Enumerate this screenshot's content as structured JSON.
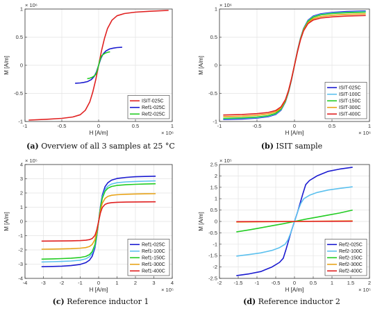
{
  "chart_data": [
    {
      "type": "line",
      "tag": "(a)",
      "caption": "Overview of all 3 samples at 25 °C",
      "xlabel": "H [A/m]",
      "ylabel": "M [A/m]",
      "x_exponent": "× 10⁶",
      "y_exponent": "× 10⁶",
      "xlim": [
        -1,
        1
      ],
      "ylim": [
        -1,
        1
      ],
      "xticks": [
        -1,
        -0.5,
        0,
        0.5,
        1
      ],
      "xtick_labels": [
        "-1",
        "-0.5",
        "0",
        "0.5",
        "1"
      ],
      "yticks": [
        -1,
        -0.5,
        0,
        0.5,
        1
      ],
      "ytick_labels": [
        "-1",
        "-0.5",
        "0",
        "0.5",
        "1"
      ],
      "grid": true,
      "legend": "bottom-right",
      "series": [
        {
          "name": "ISIT-025C",
          "color": "#e02020",
          "x": [
            -0.95,
            -0.7,
            -0.5,
            -0.35,
            -0.25,
            -0.18,
            -0.12,
            -0.08,
            -0.04,
            0,
            0.04,
            0.08,
            0.12,
            0.18,
            0.25,
            0.35,
            0.5,
            0.7,
            0.95
          ],
          "y": [
            -0.975,
            -0.96,
            -0.945,
            -0.92,
            -0.88,
            -0.8,
            -0.65,
            -0.48,
            -0.26,
            0,
            0.26,
            0.48,
            0.65,
            0.8,
            0.88,
            0.92,
            0.945,
            0.96,
            0.975
          ]
        },
        {
          "name": "Ref1-025C",
          "color": "#1a1ad0",
          "x": [
            -0.32,
            -0.25,
            -0.2,
            -0.15,
            -0.1,
            -0.06,
            -0.03,
            0,
            0.03,
            0.06,
            0.1,
            0.15,
            0.2,
            0.25,
            0.32
          ],
          "y": [
            -0.32,
            -0.315,
            -0.305,
            -0.29,
            -0.255,
            -0.2,
            -0.12,
            0,
            0.12,
            0.2,
            0.255,
            0.29,
            0.305,
            0.315,
            0.32
          ]
        },
        {
          "name": "Ref2-025C",
          "color": "#22cc22",
          "x": [
            -0.155,
            -0.12,
            -0.09,
            -0.06,
            -0.04,
            -0.02,
            0,
            0.02,
            0.04,
            0.06,
            0.09,
            0.12,
            0.155
          ],
          "y": [
            -0.24,
            -0.23,
            -0.215,
            -0.19,
            -0.165,
            -0.1,
            0,
            0.1,
            0.165,
            0.19,
            0.215,
            0.23,
            0.24
          ]
        }
      ]
    },
    {
      "type": "line",
      "tag": "(b)",
      "caption": "ISIT sample",
      "xlabel": "H [A/m]",
      "ylabel": "M [A/m]",
      "x_exponent": "× 10⁶",
      "y_exponent": "× 10⁶",
      "xlim": [
        -1,
        1
      ],
      "ylim": [
        -1,
        1
      ],
      "xticks": [
        -1,
        -0.5,
        0,
        0.5,
        1
      ],
      "xtick_labels": [
        "-1",
        "-0.5",
        "0",
        "0.5",
        "1"
      ],
      "yticks": [
        -1,
        -0.5,
        0,
        0.5,
        1
      ],
      "ytick_labels": [
        "-1",
        "-0.5",
        "0",
        "0.5",
        "1"
      ],
      "grid": true,
      "legend": "bottom-right",
      "series": [
        {
          "name": "ISIT-025C",
          "color": "#1a1ad0",
          "x": [
            -0.95,
            -0.7,
            -0.5,
            -0.35,
            -0.25,
            -0.18,
            -0.12,
            -0.08,
            -0.04,
            0,
            0.04,
            0.08,
            0.12,
            0.18,
            0.25,
            0.35,
            0.5,
            0.7,
            0.95
          ],
          "y": [
            -0.965,
            -0.955,
            -0.94,
            -0.915,
            -0.875,
            -0.8,
            -0.65,
            -0.48,
            -0.26,
            0,
            0.26,
            0.48,
            0.65,
            0.8,
            0.875,
            0.915,
            0.94,
            0.955,
            0.965
          ]
        },
        {
          "name": "ISIT-100C",
          "color": "#5bc0ee",
          "x": [
            -0.95,
            -0.7,
            -0.5,
            -0.35,
            -0.25,
            -0.18,
            -0.12,
            -0.08,
            -0.04,
            0,
            0.04,
            0.08,
            0.12,
            0.18,
            0.25,
            0.35,
            0.5,
            0.7,
            0.95
          ],
          "y": [
            -0.955,
            -0.945,
            -0.93,
            -0.905,
            -0.865,
            -0.79,
            -0.645,
            -0.475,
            -0.255,
            0,
            0.255,
            0.475,
            0.645,
            0.79,
            0.865,
            0.905,
            0.93,
            0.945,
            0.955
          ]
        },
        {
          "name": "ISIT-150C",
          "color": "#22cc22",
          "x": [
            -0.95,
            -0.7,
            -0.5,
            -0.35,
            -0.25,
            -0.18,
            -0.12,
            -0.08,
            -0.04,
            0,
            0.04,
            0.08,
            0.12,
            0.18,
            0.25,
            0.35,
            0.5,
            0.7,
            0.95
          ],
          "y": [
            -0.945,
            -0.935,
            -0.92,
            -0.895,
            -0.855,
            -0.78,
            -0.64,
            -0.47,
            -0.25,
            0,
            0.25,
            0.47,
            0.64,
            0.78,
            0.855,
            0.895,
            0.92,
            0.935,
            0.945
          ]
        },
        {
          "name": "ISIT-300C",
          "color": "#e8a317",
          "x": [
            -0.95,
            -0.7,
            -0.5,
            -0.35,
            -0.25,
            -0.18,
            -0.12,
            -0.08,
            -0.04,
            0,
            0.04,
            0.08,
            0.12,
            0.18,
            0.25,
            0.35,
            0.5,
            0.7,
            0.95
          ],
          "y": [
            -0.915,
            -0.905,
            -0.89,
            -0.865,
            -0.83,
            -0.76,
            -0.625,
            -0.46,
            -0.245,
            0,
            0.245,
            0.46,
            0.625,
            0.76,
            0.83,
            0.865,
            0.89,
            0.905,
            0.915
          ]
        },
        {
          "name": "ISIT-400C",
          "color": "#e02020",
          "x": [
            -0.95,
            -0.7,
            -0.5,
            -0.35,
            -0.25,
            -0.18,
            -0.12,
            -0.08,
            -0.04,
            0,
            0.04,
            0.08,
            0.12,
            0.18,
            0.25,
            0.35,
            0.5,
            0.7,
            0.95
          ],
          "y": [
            -0.885,
            -0.875,
            -0.86,
            -0.84,
            -0.805,
            -0.74,
            -0.61,
            -0.45,
            -0.24,
            0,
            0.24,
            0.45,
            0.61,
            0.74,
            0.805,
            0.84,
            0.86,
            0.875,
            0.885
          ]
        }
      ]
    },
    {
      "type": "line",
      "tag": "(c)",
      "caption": "Reference inductor 1",
      "xlabel": "H [A/m]",
      "ylabel": "M [A/m]",
      "x_exponent": "× 10⁵",
      "y_exponent": "× 10⁵",
      "xlim": [
        -4,
        4
      ],
      "ylim": [
        -4,
        4
      ],
      "xticks": [
        -4,
        -3,
        -2,
        -1,
        0,
        1,
        2,
        3,
        4
      ],
      "xtick_labels": [
        "-4",
        "-3",
        "-2",
        "-1",
        "0",
        "1",
        "2",
        "3",
        "4"
      ],
      "yticks": [
        -4,
        -3,
        -2,
        -1,
        0,
        1,
        2,
        3,
        4
      ],
      "ytick_labels": [
        "-4",
        "-3",
        "-2",
        "-1",
        "0",
        "1",
        "2",
        "3",
        "4"
      ],
      "grid": true,
      "legend": "bottom-right",
      "series": [
        {
          "name": "Ref1-025C",
          "color": "#1a1ad0",
          "x": [
            -3.1,
            -2.5,
            -2,
            -1.5,
            -1,
            -0.7,
            -0.5,
            -0.35,
            -0.2,
            -0.1,
            0,
            0.1,
            0.2,
            0.35,
            0.5,
            0.7,
            1,
            1.5,
            2,
            2.5,
            3.1
          ],
          "y": [
            -3.18,
            -3.16,
            -3.14,
            -3.1,
            -3.02,
            -2.9,
            -2.72,
            -2.45,
            -1.85,
            -1.05,
            0,
            1.05,
            1.85,
            2.45,
            2.72,
            2.9,
            3.02,
            3.1,
            3.14,
            3.16,
            3.18
          ]
        },
        {
          "name": "Ref1-100C",
          "color": "#5bc0ee",
          "x": [
            -3.1,
            -2.5,
            -2,
            -1.5,
            -1,
            -0.7,
            -0.5,
            -0.35,
            -0.2,
            -0.1,
            0,
            0.1,
            0.2,
            0.35,
            0.5,
            0.7,
            1,
            1.5,
            2,
            2.5,
            3.1
          ],
          "y": [
            -2.85,
            -2.83,
            -2.81,
            -2.78,
            -2.72,
            -2.63,
            -2.48,
            -2.25,
            -1.72,
            -0.98,
            0,
            0.98,
            1.72,
            2.25,
            2.48,
            2.63,
            2.72,
            2.78,
            2.81,
            2.83,
            2.85
          ]
        },
        {
          "name": "Ref1-150C",
          "color": "#22cc22",
          "x": [
            -3.1,
            -2.5,
            -2,
            -1.5,
            -1,
            -0.7,
            -0.5,
            -0.35,
            -0.2,
            -0.1,
            0,
            0.1,
            0.2,
            0.35,
            0.5,
            0.7,
            1,
            1.5,
            2,
            2.5,
            3.1
          ],
          "y": [
            -2.65,
            -2.63,
            -2.61,
            -2.58,
            -2.53,
            -2.46,
            -2.33,
            -2.12,
            -1.63,
            -0.93,
            0,
            0.93,
            1.63,
            2.12,
            2.33,
            2.46,
            2.53,
            2.58,
            2.61,
            2.63,
            2.65
          ]
        },
        {
          "name": "Ref1-300C",
          "color": "#e8a317",
          "x": [
            -3.1,
            -2.5,
            -2,
            -1.5,
            -1,
            -0.7,
            -0.5,
            -0.35,
            -0.2,
            -0.1,
            0,
            0.1,
            0.2,
            0.35,
            0.5,
            0.7,
            1,
            1.5,
            2,
            2.5,
            3.1
          ],
          "y": [
            -1.95,
            -1.94,
            -1.93,
            -1.91,
            -1.88,
            -1.84,
            -1.76,
            -1.62,
            -1.28,
            -0.75,
            0,
            0.75,
            1.28,
            1.62,
            1.76,
            1.84,
            1.88,
            1.91,
            1.93,
            1.94,
            1.95
          ]
        },
        {
          "name": "Ref1-400C",
          "color": "#e02020",
          "x": [
            -3.1,
            -2.5,
            -2,
            -1.5,
            -1,
            -0.7,
            -0.5,
            -0.35,
            -0.2,
            -0.1,
            0,
            0.1,
            0.2,
            0.35,
            0.5,
            0.7,
            1,
            1.5,
            2,
            2.5,
            3.1
          ],
          "y": [
            -1.38,
            -1.375,
            -1.37,
            -1.36,
            -1.345,
            -1.32,
            -1.28,
            -1.2,
            -0.98,
            -0.6,
            0,
            0.6,
            0.98,
            1.2,
            1.28,
            1.32,
            1.345,
            1.36,
            1.37,
            1.375,
            1.38
          ]
        }
      ]
    },
    {
      "type": "line",
      "tag": "(d)",
      "caption": "Reference inductor 2",
      "xlabel": "H [A/m]",
      "ylabel": "M [A/m]",
      "x_exponent": "× 10⁵",
      "y_exponent": "× 10⁵",
      "xlim": [
        -2,
        2
      ],
      "ylim": [
        -2.5,
        2.5
      ],
      "xticks": [
        -2,
        -1.5,
        -1,
        -0.5,
        0,
        0.5,
        1,
        1.5,
        2
      ],
      "xtick_labels": [
        "-2",
        "-1.5",
        "-1",
        "-0.5",
        "0",
        "0.5",
        "1",
        "1.5",
        "2"
      ],
      "yticks": [
        -2.5,
        -2,
        -1.5,
        -1,
        -0.5,
        0,
        0.5,
        1,
        1.5,
        2,
        2.5
      ],
      "ytick_labels": [
        "-2.5",
        "-2",
        "-1.5",
        "-1",
        "-0.5",
        "0",
        "0.5",
        "1",
        "1.5",
        "2",
        "2.5"
      ],
      "grid": true,
      "legend": "bottom-right",
      "series": [
        {
          "name": "Ref2-025C",
          "color": "#1a1ad0",
          "x": [
            -1.55,
            -1.2,
            -0.9,
            -0.6,
            -0.4,
            -0.3,
            -0.22,
            -0.15,
            -0.08,
            0,
            0.08,
            0.15,
            0.22,
            0.3,
            0.4,
            0.6,
            0.9,
            1.2,
            1.55
          ],
          "y": [
            -2.38,
            -2.3,
            -2.2,
            -2.0,
            -1.8,
            -1.62,
            -1.2,
            -0.8,
            -0.4,
            0,
            0.4,
            0.8,
            1.2,
            1.62,
            1.8,
            2.0,
            2.2,
            2.3,
            2.38
          ]
        },
        {
          "name": "Ref2-100C",
          "color": "#5bc0ee",
          "x": [
            -1.55,
            -1.2,
            -0.9,
            -0.6,
            -0.4,
            -0.25,
            -0.17,
            -0.1,
            -0.05,
            0,
            0.05,
            0.1,
            0.17,
            0.25,
            0.4,
            0.6,
            0.9,
            1.2,
            1.55
          ],
          "y": [
            -1.52,
            -1.45,
            -1.38,
            -1.27,
            -1.15,
            -1.0,
            -0.8,
            -0.5,
            -0.25,
            0,
            0.25,
            0.5,
            0.8,
            1.0,
            1.15,
            1.27,
            1.38,
            1.45,
            1.52
          ]
        },
        {
          "name": "Ref2-150C",
          "color": "#22cc22",
          "x": [
            -1.55,
            -1.2,
            -0.9,
            -0.6,
            -0.3,
            -0.1,
            0,
            0.1,
            0.3,
            0.6,
            0.9,
            1.2,
            1.55
          ],
          "y": [
            -0.46,
            -0.37,
            -0.28,
            -0.19,
            -0.1,
            -0.035,
            0,
            0.035,
            0.1,
            0.19,
            0.28,
            0.37,
            0.5
          ]
        },
        {
          "name": "Ref2-300C",
          "color": "#e8a317",
          "x": [
            -1.55,
            -1,
            0,
            1,
            1.55
          ],
          "y": [
            -0.025,
            -0.018,
            0,
            0.018,
            0.025
          ]
        },
        {
          "name": "Ref2-400C",
          "color": "#e02020",
          "x": [
            -1.55,
            -1,
            0,
            1,
            1.55
          ],
          "y": [
            -0.01,
            -0.007,
            0,
            0.007,
            0.01
          ]
        }
      ]
    }
  ]
}
